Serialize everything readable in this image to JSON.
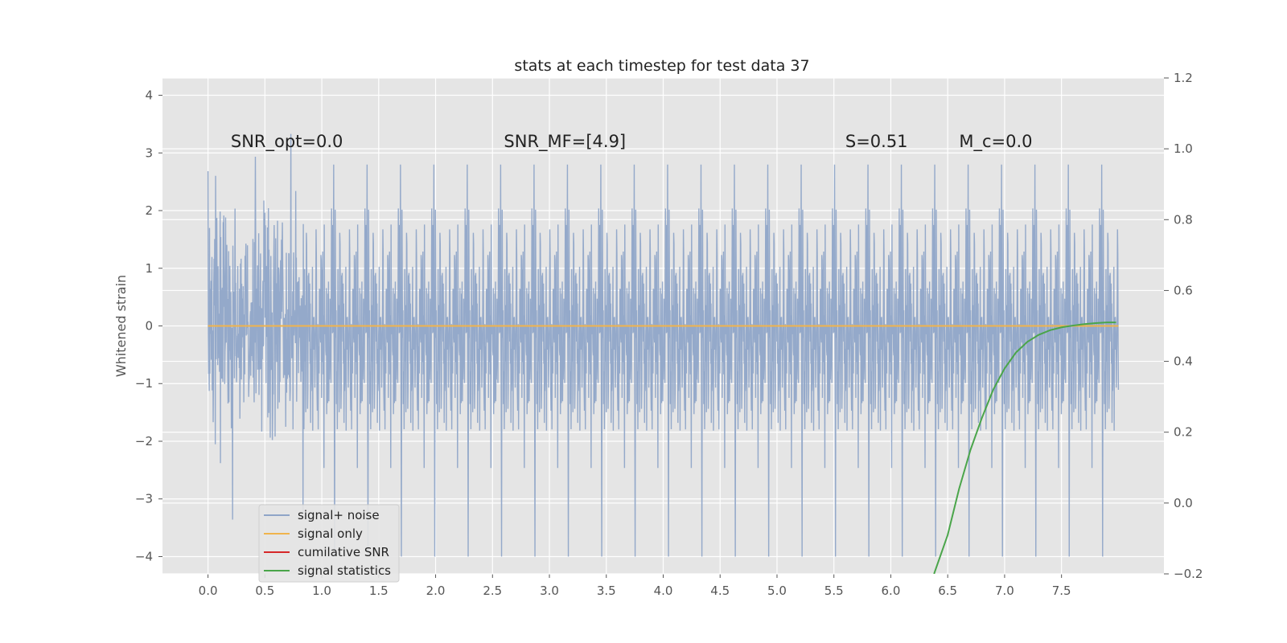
{
  "chart_data": {
    "type": "line",
    "title": "stats at each timestep for test data 37",
    "xlabel": "",
    "ylabel": "Whitened strain",
    "y2label": "",
    "xlim": [
      -0.4,
      8.4
    ],
    "ylim": [
      -4.3,
      4.3
    ],
    "y2lim": [
      -0.2,
      1.2
    ],
    "x_ticks": [
      "0.0",
      "0.5",
      "1.0",
      "1.5",
      "2.0",
      "2.5",
      "3.0",
      "3.5",
      "4.0",
      "4.5",
      "5.0",
      "5.5",
      "6.0",
      "6.5",
      "7.0",
      "7.5"
    ],
    "y_ticks": [
      "−4",
      "−3",
      "−2",
      "−1",
      "0",
      "1",
      "2",
      "3",
      "4"
    ],
    "y2_ticks": [
      "−0.2",
      "0.0",
      "0.2",
      "0.4",
      "0.6",
      "0.8",
      "1.0",
      "1.2"
    ],
    "grid": true,
    "legend_position": "lower-left",
    "annotations": [
      {
        "text": "SNR_opt=0.0",
        "x": 0.2,
        "y": 3.1
      },
      {
        "text": "SNR_MF=[4.9]",
        "x": 2.6,
        "y": 3.1
      },
      {
        "text": "S=0.51",
        "x": 5.6,
        "y": 3.1
      },
      {
        "text": "M_c=0.0",
        "x": 6.6,
        "y": 3.1
      }
    ],
    "series": [
      {
        "name": "signal+ noise",
        "color": "#8fa5c8",
        "axis": "left",
        "style": "noise",
        "x_range": [
          0.0,
          8.0
        ],
        "amplitude_std": 1.0
      },
      {
        "name": "signal only",
        "color": "#f0b44c",
        "axis": "left",
        "x": [
          0.0,
          8.0
        ],
        "y": [
          0.0,
          0.0
        ]
      },
      {
        "name": "cumilative SNR",
        "color": "#d62728",
        "axis": "right",
        "x": [],
        "y": []
      },
      {
        "name": "signal statistics",
        "color": "#4aa54a",
        "axis": "right",
        "x": [
          6.38,
          6.5,
          6.6,
          6.7,
          6.8,
          6.9,
          7.0,
          7.1,
          7.2,
          7.3,
          7.4,
          7.5,
          7.6,
          7.7,
          7.8,
          7.9,
          7.98
        ],
        "y": [
          -0.2,
          -0.09,
          0.04,
          0.15,
          0.24,
          0.32,
          0.38,
          0.425,
          0.455,
          0.475,
          0.488,
          0.496,
          0.501,
          0.505,
          0.508,
          0.51,
          0.51
        ]
      }
    ]
  }
}
